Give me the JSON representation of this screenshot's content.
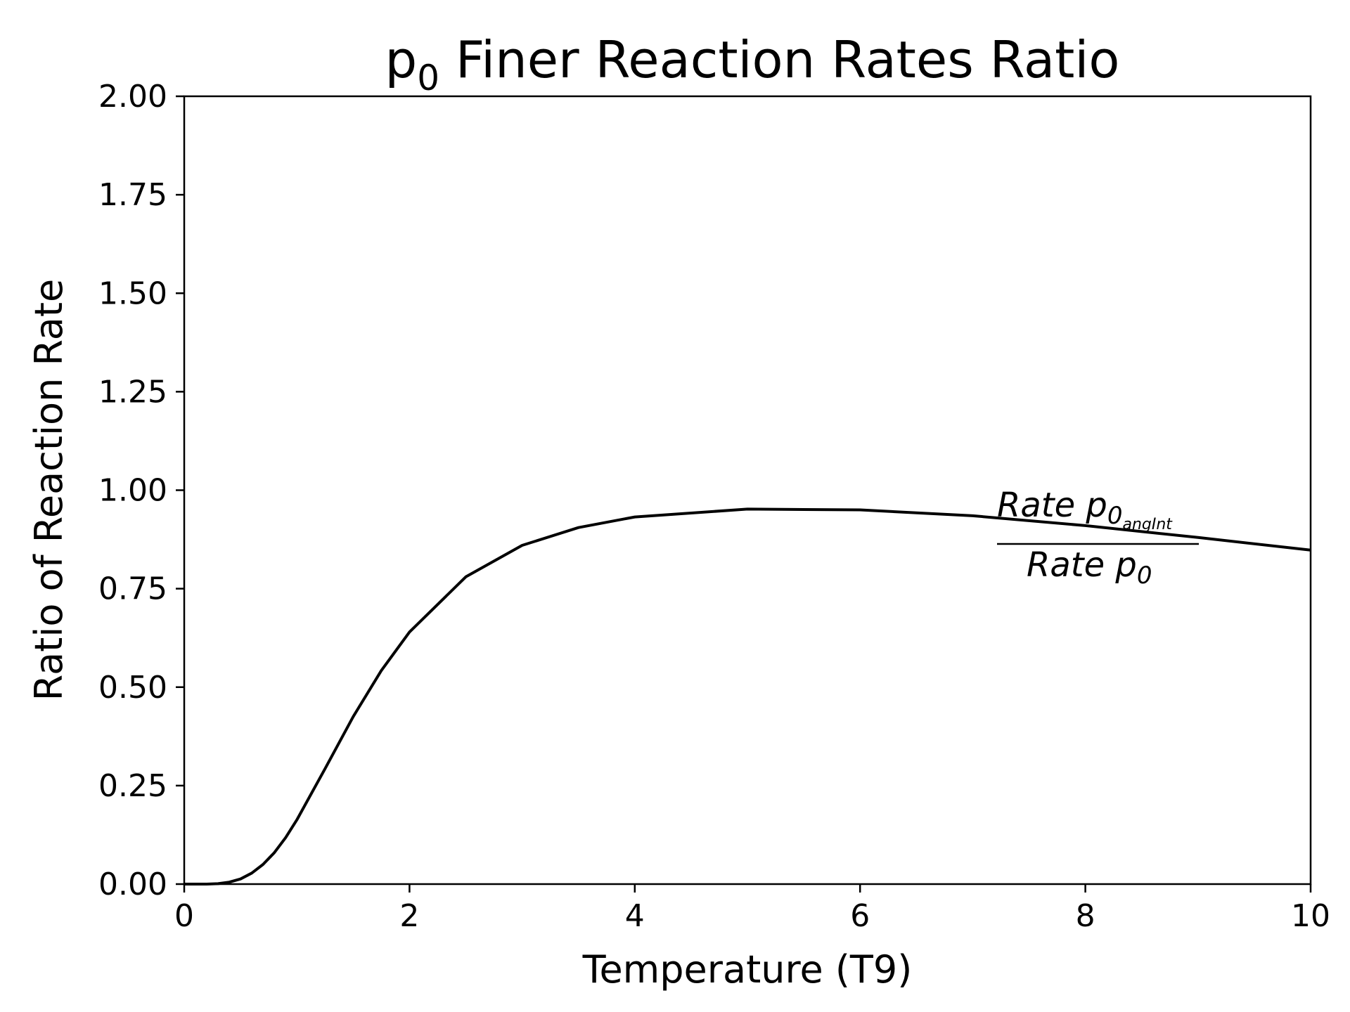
{
  "chart_data": {
    "type": "line",
    "title": {
      "main": "p",
      "sub": "0",
      "rest": " Finer Reaction Rates Ratio"
    },
    "xlabel": "Temperature (T9)",
    "ylabel": "Ratio of Reaction Rate",
    "xlim": [
      0,
      10
    ],
    "ylim": [
      0,
      2
    ],
    "xticks": [
      0,
      2,
      4,
      6,
      8,
      10
    ],
    "xtick_labels": [
      "0",
      "2",
      "4",
      "6",
      "8",
      "10"
    ],
    "yticks": [
      0,
      0.25,
      0.5,
      0.75,
      1.0,
      1.25,
      1.5,
      1.75,
      2.0
    ],
    "ytick_labels": [
      "0.00",
      "0.25",
      "0.50",
      "0.75",
      "1.00",
      "1.25",
      "1.50",
      "1.75",
      "2.00"
    ],
    "grid": false,
    "series": [
      {
        "color": "#000000",
        "x": [
          0,
          0.1,
          0.2,
          0.3,
          0.4,
          0.5,
          0.6,
          0.7,
          0.8,
          0.9,
          1.0,
          1.25,
          1.5,
          1.75,
          2.0,
          2.5,
          3.0,
          3.5,
          4.0,
          5.0,
          6.0,
          7.0,
          8.0,
          9.0,
          10.0
        ],
        "y": [
          0,
          0,
          0,
          0.001,
          0.005,
          0.013,
          0.028,
          0.05,
          0.08,
          0.118,
          0.163,
          0.293,
          0.425,
          0.542,
          0.64,
          0.78,
          0.86,
          0.905,
          0.932,
          0.952,
          0.95,
          0.935,
          0.91,
          0.88,
          0.848
        ]
      }
    ],
    "annotation": {
      "numerator_main": "Rate p",
      "numerator_sub": "0",
      "numerator_subsub": "angInt",
      "denominator_main": "Rate p",
      "denominator_sub": "0"
    }
  }
}
